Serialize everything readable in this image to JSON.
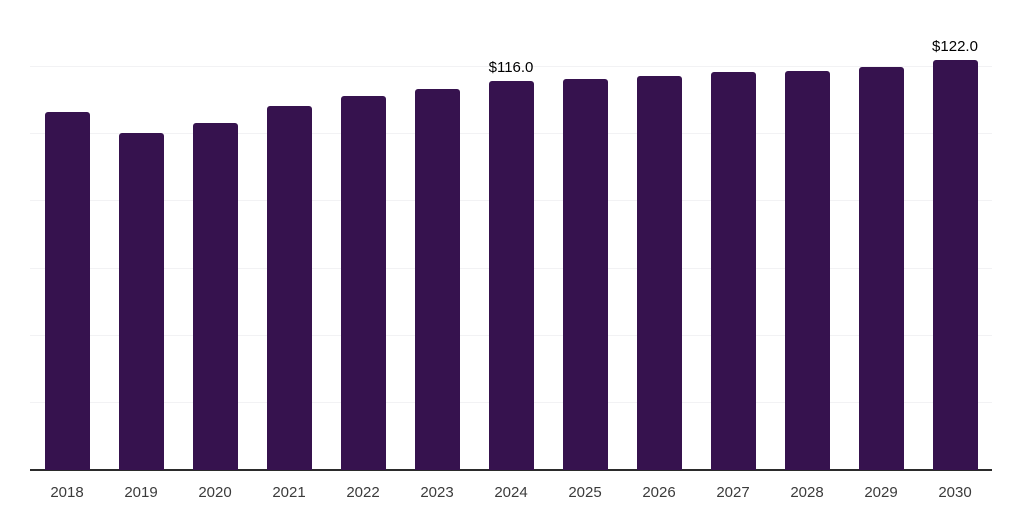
{
  "chart_data": {
    "type": "bar",
    "title": "",
    "xlabel": "",
    "ylabel": "",
    "categories": [
      "2018",
      "2019",
      "2020",
      "2021",
      "2022",
      "2023",
      "2024",
      "2025",
      "2026",
      "2027",
      "2028",
      "2029",
      "2030"
    ],
    "values": [
      106.5,
      100.5,
      103.5,
      108.5,
      111.5,
      113.5,
      116.0,
      116.5,
      117.5,
      118.5,
      119.0,
      120.0,
      122.0
    ],
    "point_labels": [
      "",
      "",
      "",
      "",
      "",
      "",
      "$116.0",
      "",
      "",
      "",
      "",
      "",
      "$122.0"
    ],
    "ylim": [
      0,
      140
    ],
    "grid_step": 20,
    "grid": "horizontal-only",
    "y_tick_labels": "none",
    "legend": "none",
    "colors": {
      "bar": "#36124e",
      "axis": "#2b2b2b",
      "grid": "#f2f2f4",
      "tick_label": "#3b3b3b",
      "point_label": "#000000",
      "background": "#ffffff"
    }
  }
}
